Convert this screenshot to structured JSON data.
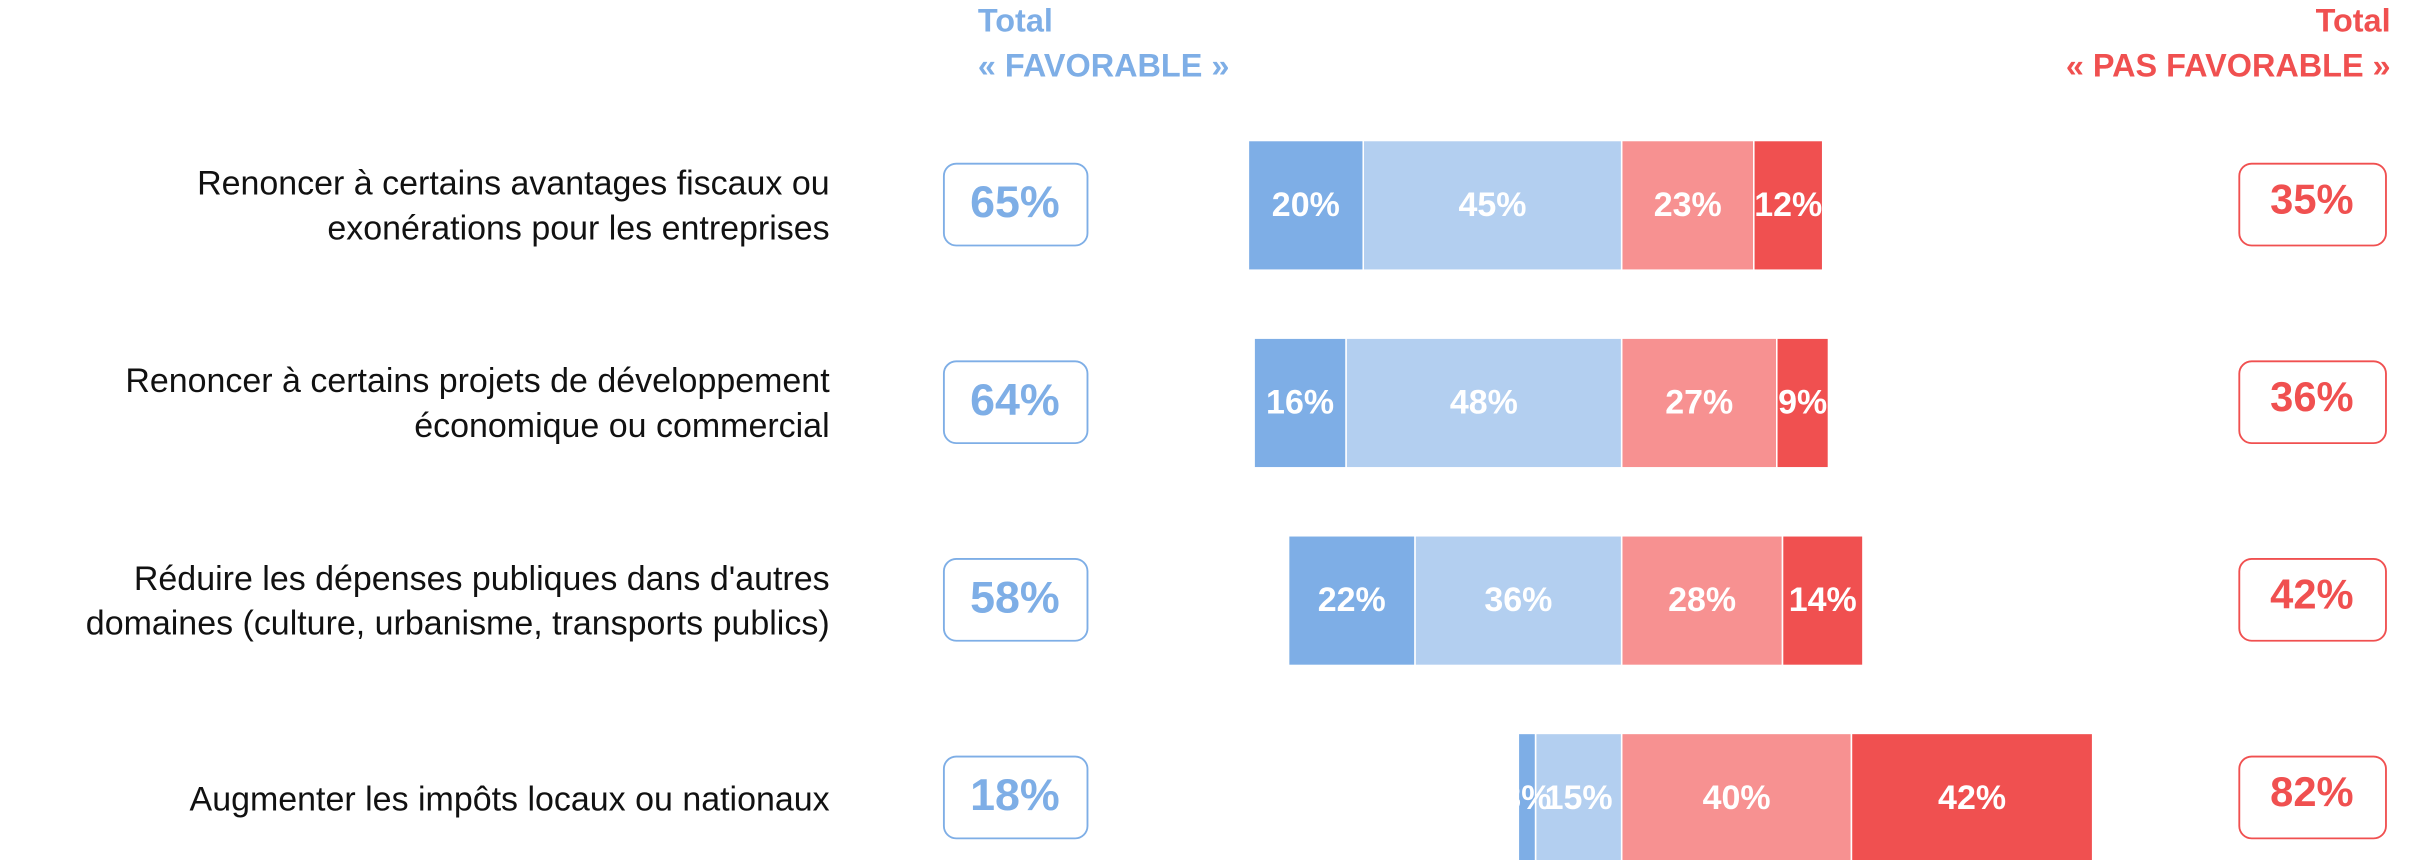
{
  "chart_data": {
    "type": "diverging_bar",
    "header_left": {
      "line1": "Total",
      "line2": "« FAVORABLE »",
      "color": "#7eaee6"
    },
    "header_right": {
      "line1": "Total",
      "line2": "« PAS FAVORABLE »",
      "color": "#f05050"
    },
    "categories": [
      "Renoncer à certains avantages fiscaux ou exonérations pour les entreprises",
      "Renoncer à certains projets de développement économique ou commercial",
      "Réduire les dépenses publiques dans d'autres domaines (culture, urbanisme, transports publics)",
      "Augmenter les impôts locaux ou nationaux"
    ],
    "series": [
      {
        "color": "#7eaee6",
        "values": [
          20,
          16,
          22,
          3
        ],
        "value_labels": [
          "20%",
          "16%",
          "22%",
          "3%"
        ]
      },
      {
        "color": "#b3cff0",
        "values": [
          45,
          48,
          36,
          15
        ],
        "value_labels": [
          "45%",
          "48%",
          "36%",
          "15%"
        ]
      },
      {
        "color": "#f79191",
        "values": [
          23,
          27,
          28,
          40
        ],
        "value_labels": [
          "23%",
          "27%",
          "28%",
          "40%"
        ]
      },
      {
        "color": "#f05050",
        "values": [
          12,
          9,
          14,
          42
        ],
        "value_labels": [
          "12%",
          "9%",
          "14%",
          "42%"
        ]
      }
    ],
    "total_favorable": {
      "values": [
        65,
        64,
        58,
        18
      ],
      "value_labels": [
        "65%",
        "64%",
        "58%",
        "18%"
      ]
    },
    "total_not_favorable": {
      "values": [
        35,
        36,
        42,
        82
      ],
      "value_labels": [
        "35%",
        "36%",
        "42%",
        "82%"
      ]
    }
  }
}
